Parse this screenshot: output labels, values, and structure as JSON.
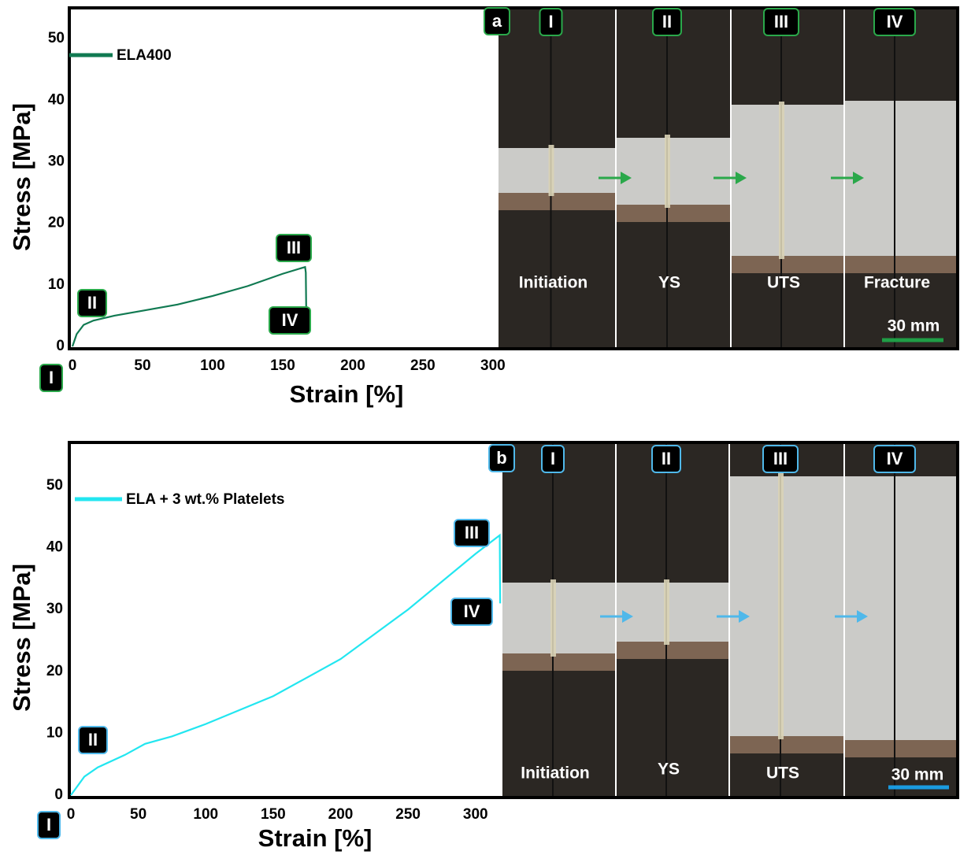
{
  "chart_data": [
    {
      "type": "line",
      "panel_label": "a",
      "x_label": "Strain [%]",
      "y_label": "Stress [MPa]",
      "x": [
        0,
        3,
        8,
        15,
        30,
        50,
        75,
        100,
        125,
        150,
        166,
        166.5,
        167
      ],
      "series": [
        {
          "name": "ELA400",
          "color": "#117a52",
          "values": [
            0,
            2,
            3.5,
            4.2,
            5,
            5.8,
            6.8,
            8.2,
            9.8,
            11.8,
            12.9,
            12,
            2
          ]
        }
      ],
      "xlim": [
        0,
        304
      ],
      "ylim": [
        0,
        55
      ],
      "xticks": [
        0,
        50,
        100,
        150,
        200,
        250,
        300
      ],
      "yticks": [
        0,
        10,
        20,
        30,
        40,
        50
      ],
      "stages": [
        "I",
        "II",
        "III",
        "IV"
      ],
      "photo_captions": [
        "Initiation",
        "YS",
        "UTS",
        "Fracture"
      ],
      "scale_bar": "30 mm",
      "accent_color": "#2aa84a"
    },
    {
      "type": "line",
      "panel_label": "b",
      "x_label": "Strain [%]",
      "y_label": "Stress [MPa]",
      "x": [
        0,
        10,
        20,
        40,
        55,
        75,
        100,
        150,
        200,
        250,
        300,
        318,
        318.3
      ],
      "series": [
        {
          "name": "ELA + 3 wt.%  Platelets",
          "color": "#22e6f0",
          "values": [
            0,
            3,
            4.5,
            6.5,
            8.3,
            9.5,
            11.5,
            16,
            22,
            30,
            39,
            42,
            31
          ]
        }
      ],
      "xlim": [
        0,
        320
      ],
      "ylim": [
        0,
        57
      ],
      "xticks": [
        0,
        50,
        100,
        150,
        200,
        250,
        300
      ],
      "yticks": [
        0,
        10,
        20,
        30,
        40,
        50
      ],
      "stages": [
        "I",
        "II",
        "III",
        "IV"
      ],
      "photo_captions": [
        "Initiation",
        "YS",
        "UTS"
      ],
      "scale_bar": "30 mm",
      "accent_color": "#4fb8ea"
    }
  ]
}
